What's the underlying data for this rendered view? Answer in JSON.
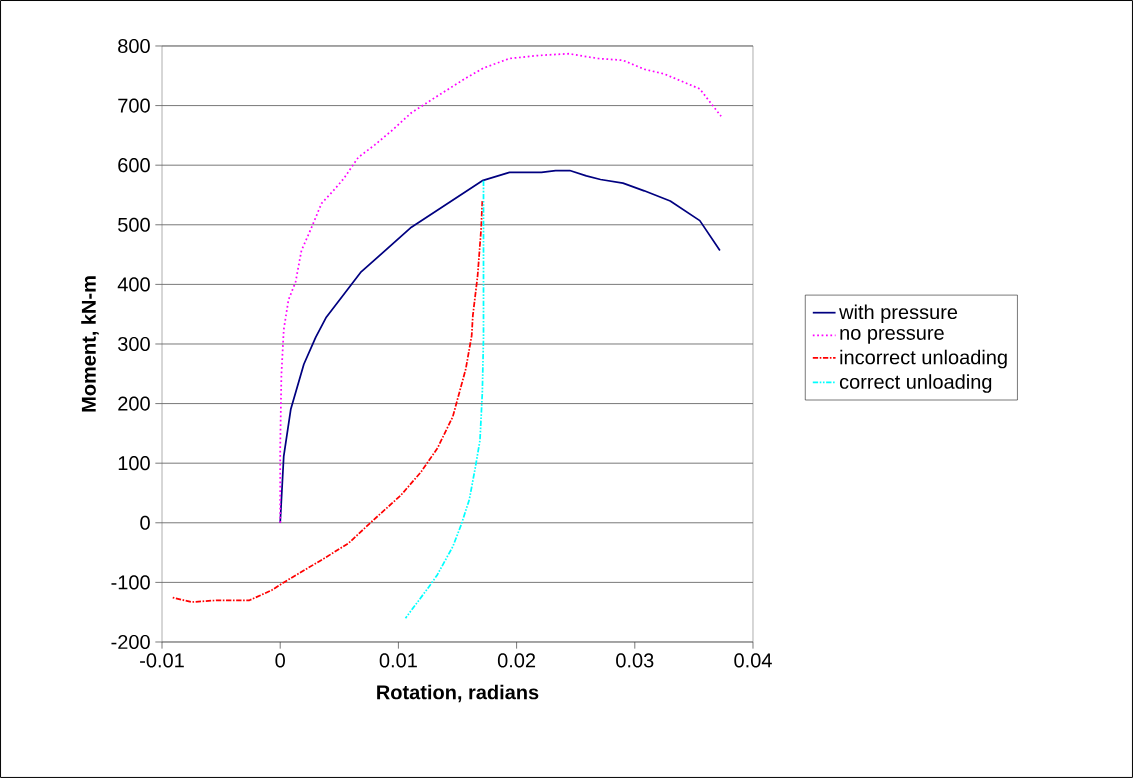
{
  "chart_data": {
    "type": "line",
    "xlabel": "Rotation, radians",
    "ylabel": "Moment, kN-m",
    "xlim": [
      -0.01,
      0.04
    ],
    "xticks": [
      -0.01,
      0,
      0.01,
      0.02,
      0.03,
      0.04
    ],
    "ylim": [
      -200,
      800
    ],
    "yticks": [
      -200,
      -100,
      0,
      100,
      200,
      300,
      400,
      500,
      600,
      700,
      800
    ],
    "grid": "y",
    "legend": "right",
    "marker": "none",
    "series": [
      {
        "name": "with pressure",
        "color": "#000080",
        "line_style": "solid",
        "x": [
          0,
          0.0003,
          0.0009,
          0.002,
          0.003,
          0.0039,
          0.0068,
          0.0111,
          0.0171,
          0.0194,
          0.0221,
          0.0233,
          0.0245,
          0.0259,
          0.0271,
          0.029,
          0.0308,
          0.033,
          0.0355,
          0.0372
        ],
        "values": [
          0,
          112,
          191,
          266,
          311,
          345,
          420,
          496,
          574,
          588,
          588,
          591,
          591,
          582,
          576,
          570,
          557,
          540,
          507,
          457
        ]
      },
      {
        "name": "no pressure",
        "color": "#ff00ff",
        "line_style": "dotted",
        "x": [
          0,
          0,
          0.0001,
          0.0003,
          0.0007,
          0.0013,
          0.0018,
          0.0026,
          0.0035,
          0.0044,
          0.0054,
          0.0066,
          0.008,
          0.0095,
          0.0111,
          0.0133,
          0.0157,
          0.0172,
          0.0194,
          0.0218,
          0.0244,
          0.0269,
          0.029,
          0.0308,
          0.0325,
          0.0355,
          0.0373
        ],
        "values": [
          0,
          125,
          248,
          324,
          374,
          404,
          457,
          493,
          536,
          555,
          578,
          613,
          634,
          659,
          688,
          716,
          746,
          763,
          779,
          784,
          787,
          779,
          776,
          761,
          753,
          728,
          682
        ]
      },
      {
        "name": "incorrect unloading",
        "color": "#ff0000",
        "line_style": "dashdot",
        "x": [
          0.0171,
          0.017,
          0.0167,
          0.0163,
          0.0162,
          0.0157,
          0.0146,
          0.0133,
          0.0119,
          0.0102,
          0.0078,
          0.0058,
          0.0037,
          0.0003,
          -0.0007,
          -0.0026,
          -0.0053,
          -0.0075,
          -0.0092
        ],
        "values": [
          540,
          493,
          414,
          348,
          314,
          258,
          178,
          125,
          85,
          46,
          3,
          -34,
          -60,
          -100,
          -113,
          -130,
          -130,
          -133,
          -125
        ]
      },
      {
        "name": "correct unloading",
        "color": "#00ffff",
        "line_style": "dashdotdot",
        "x": [
          0.0172,
          0.0172,
          0.0171,
          0.0169,
          0.0165,
          0.016,
          0.0153,
          0.0146,
          0.0133,
          0.0126,
          0.0106
        ],
        "values": [
          574,
          311,
          218,
          138,
          92,
          39,
          -4,
          -40,
          -87,
          -107,
          -160
        ]
      }
    ]
  }
}
